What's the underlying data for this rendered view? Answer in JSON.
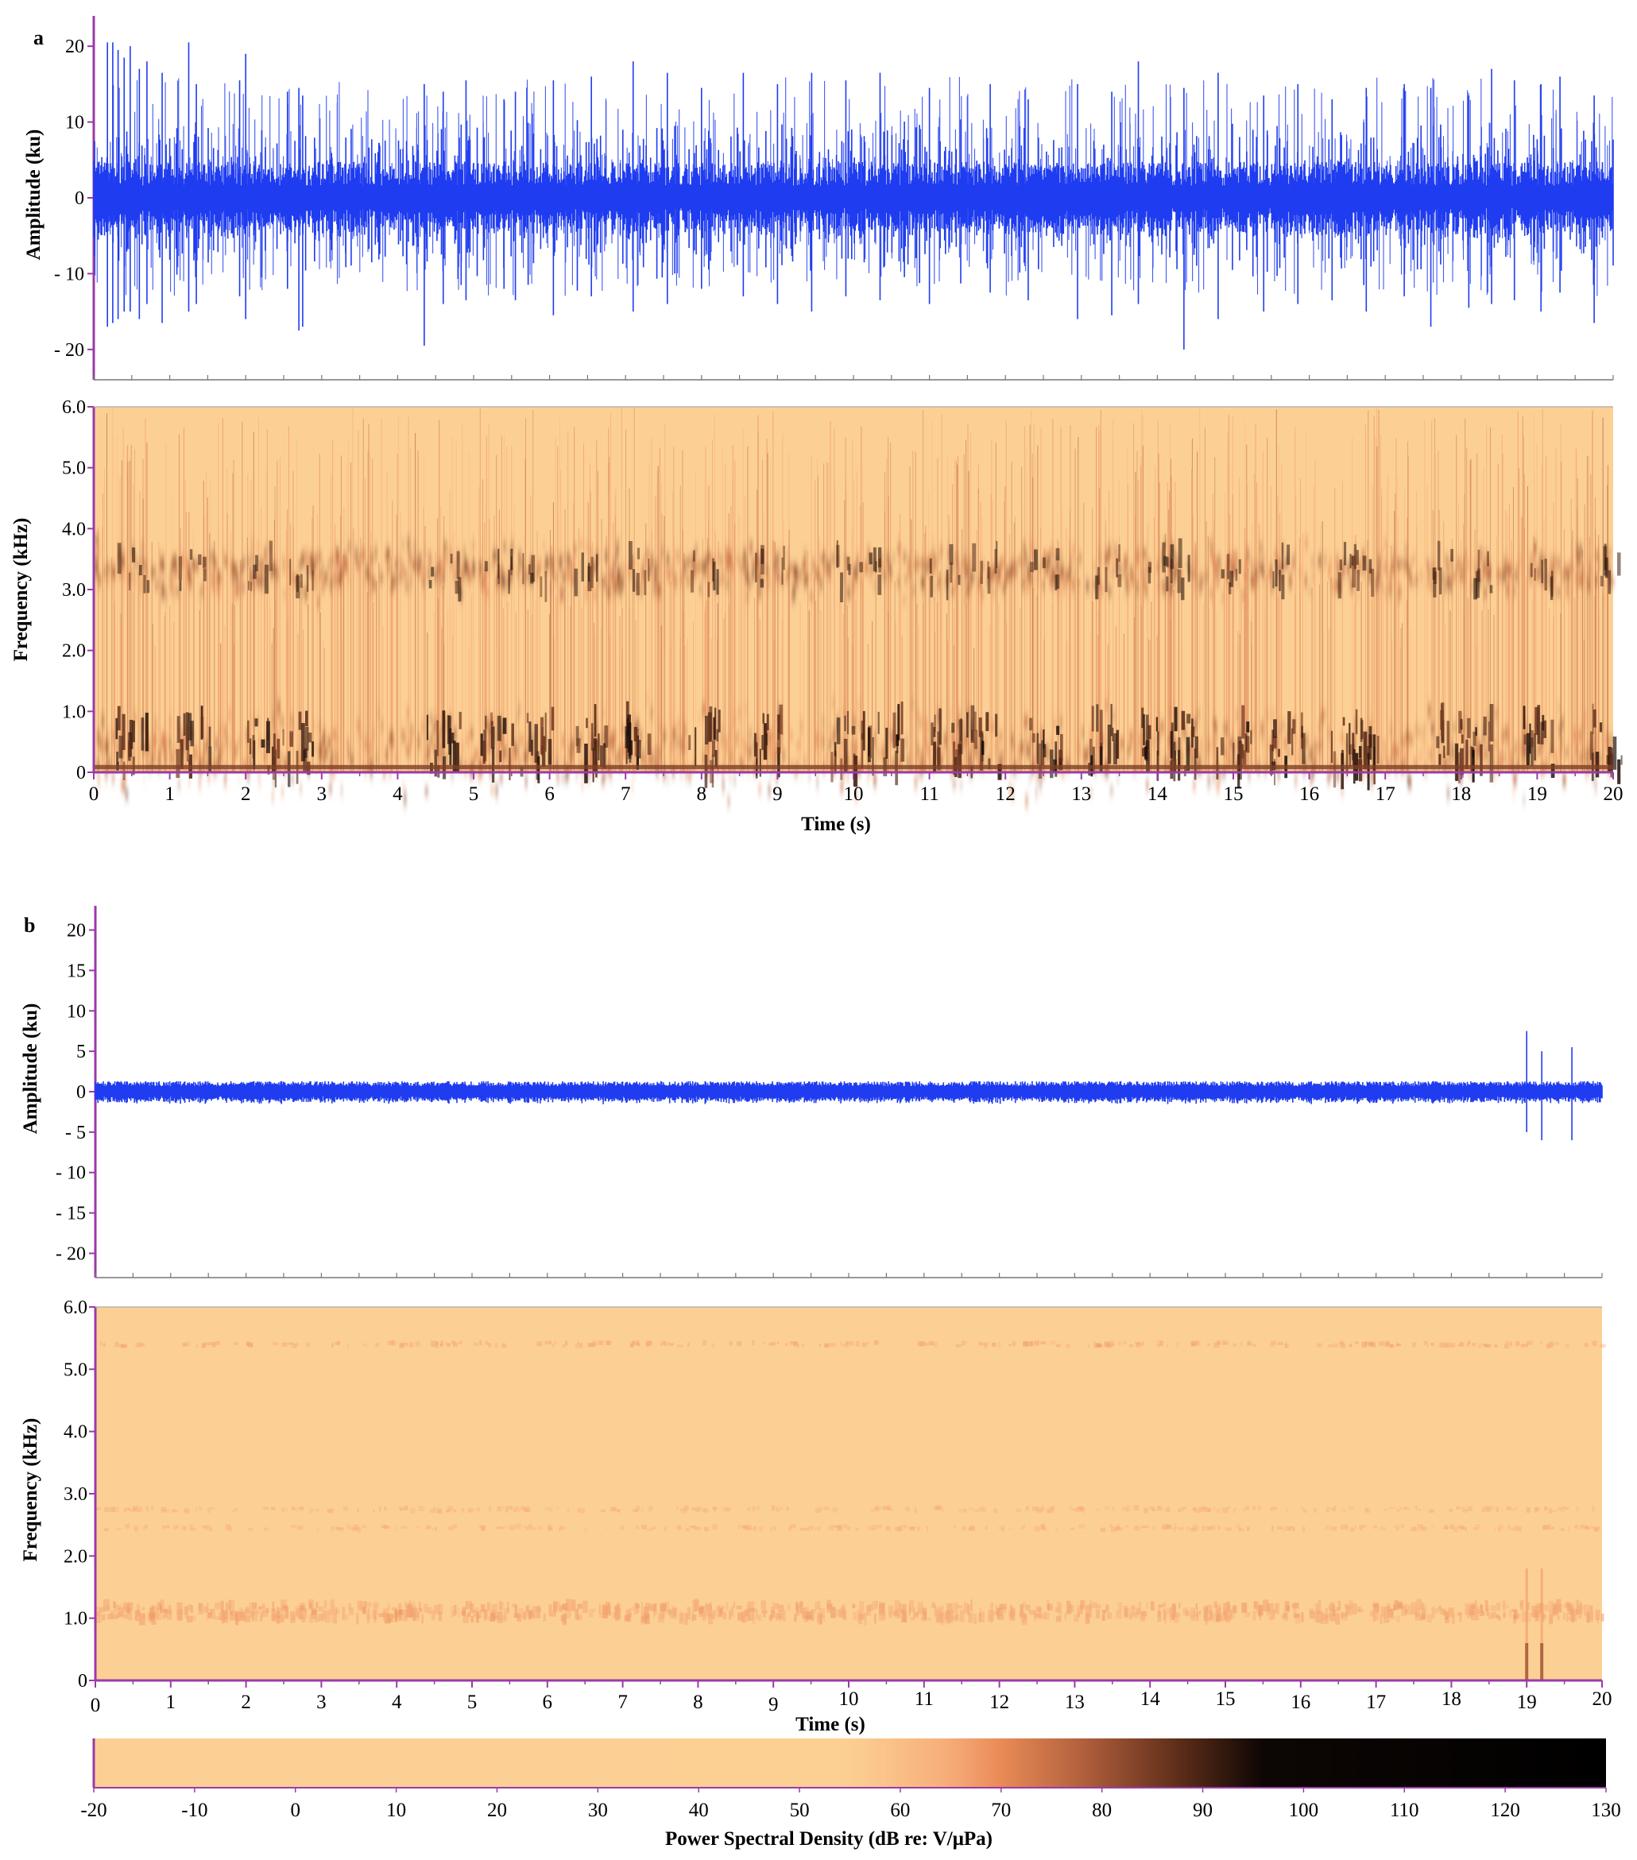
{
  "colors": {
    "waveform": "#1f3cf0",
    "spec_bg": "#fcd095",
    "axis": "#9a3aa8",
    "colormap": [
      "#fcd095",
      "#fccf93",
      "#f6ac78",
      "#e98a56",
      "#b2603c",
      "#5a2b18",
      "#0d0604",
      "#000000"
    ]
  },
  "chart_data": [
    {
      "panel": "a",
      "type": "line",
      "title": "",
      "xlabel": "",
      "ylabel": "Amplitude (ku)",
      "xlim": [
        0,
        20
      ],
      "ylim": [
        -24,
        24
      ],
      "yticks": [
        20,
        10,
        0,
        -10,
        -20
      ],
      "ytick_labels": [
        "20",
        "10",
        "0",
        "- 10",
        "- 20"
      ],
      "series": [
        {
          "values": {
            "t": [
              0.18,
              0.25,
              0.32,
              0.4,
              0.48,
              0.6,
              0.7,
              0.9,
              1.25,
              1.35,
              1.92,
              2.0,
              2.55,
              2.7,
              2.75,
              4.35,
              4.6,
              4.9,
              5.4,
              5.55,
              6.05,
              6.55,
              7.1,
              7.55,
              8.0,
              8.55,
              9.0,
              9.45,
              9.9,
              10.35,
              11.0,
              11.8,
              12.3,
              12.95,
              13.4,
              13.75,
              14.35,
              14.8,
              15.4,
              15.85,
              16.3,
              16.75,
              17.25,
              17.6,
              18.1,
              18.4,
              18.7,
              19.05,
              19.3,
              19.75
            ],
            "max": [
              20.5,
              20.5,
              19.5,
              18.5,
              20.0,
              17.0,
              18.0,
              16.5,
              20.5,
              15.0,
              15.5,
              19.0,
              14.0,
              14.5,
              13.5,
              15.0,
              14.0,
              15.5,
              13.0,
              14.0,
              15.5,
              16.0,
              18.0,
              16.5,
              14.5,
              16.5,
              15.0,
              16.5,
              15.5,
              16.5,
              14.5,
              15.0,
              13.0,
              15.0,
              14.0,
              18.0,
              14.5,
              16.5,
              13.5,
              15.0,
              13.0,
              14.5,
              15.0,
              14.5,
              13.5,
              17.0,
              15.5,
              15.0,
              16.0,
              13.5
            ],
            "min": [
              -17.0,
              -16.5,
              -16.0,
              -15.0,
              -15.0,
              -16.0,
              -14.0,
              -16.5,
              -15.0,
              -14.0,
              -13.0,
              -16.0,
              -12.0,
              -17.5,
              -17.0,
              -19.5,
              -14.0,
              -13.5,
              -12.0,
              -13.5,
              -15.5,
              -13.0,
              -15.0,
              -14.0,
              -12.0,
              -13.0,
              -14.0,
              -15.0,
              -13.0,
              -13.5,
              -14.0,
              -12.5,
              -13.5,
              -16.0,
              -15.5,
              -14.0,
              -20.0,
              -16.0,
              -15.0,
              -14.0,
              -13.5,
              -15.0,
              -13.0,
              -17.0,
              -14.5,
              -14.0,
              -13.5,
              -15.0,
              -12.5,
              -16.5
            ]
          }
        }
      ]
    },
    {
      "panel": "a",
      "type": "heatmap",
      "title": "",
      "xlabel": "Time (s)",
      "ylabel": "Frequency (kHz)",
      "xlim": [
        0,
        20
      ],
      "ylim": [
        0,
        6.0
      ],
      "xticks": [
        0,
        1,
        2,
        3,
        4,
        5,
        6,
        7,
        8,
        9,
        10,
        11,
        12,
        13,
        14,
        15,
        16,
        17,
        18,
        19,
        20
      ],
      "yticks": [
        0,
        1.0,
        2.0,
        3.0,
        4.0,
        5.0,
        6.0
      ],
      "ytick_labels": [
        "0",
        "1.0",
        "2.0",
        "3.0",
        "4.0",
        "5.0",
        "6.0"
      ],
      "bands": [
        {
          "center_khz": 3.3,
          "halfwidth_khz": 0.55,
          "level_db": 80
        },
        {
          "center_khz": 0.35,
          "halfwidth_khz": 0.9,
          "level_db": 78
        }
      ],
      "hot_spots_s": [
        0.5,
        1.3,
        2.2,
        2.7,
        4.6,
        5.3,
        5.8,
        6.5,
        7.1,
        8.0,
        8.9,
        9.9,
        10.4,
        11.2,
        11.7,
        12.5,
        13.3,
        14.0,
        14.3,
        15.0,
        15.7,
        16.5,
        16.7,
        17.8,
        18.2,
        19.0,
        19.9
      ]
    },
    {
      "panel": "b",
      "type": "line",
      "title": "",
      "xlabel": "",
      "ylabel": "Amplitude (ku)",
      "xlim": [
        0,
        20
      ],
      "ylim": [
        -23,
        23
      ],
      "yticks": [
        20,
        15,
        10,
        5,
        0,
        -5,
        -10,
        -15,
        -20
      ],
      "ytick_labels": [
        "20",
        "15",
        "10",
        "5",
        "0",
        "- 5",
        "- 10",
        "- 15",
        "- 20"
      ],
      "series": [
        {
          "values": {
            "t": [
              19.0,
              19.2,
              19.6
            ],
            "max": [
              7.5,
              5.0,
              5.5
            ],
            "min": [
              -5.0,
              -6.0,
              -6.0
            ]
          }
        }
      ]
    },
    {
      "panel": "b",
      "type": "heatmap",
      "title": "",
      "xlabel": "Time (s)",
      "ylabel": "Frequency (kHz)",
      "xlim": [
        0,
        20
      ],
      "ylim": [
        0,
        6.0
      ],
      "xticks": [
        0,
        1,
        2,
        3,
        4,
        5,
        6,
        7,
        8,
        9,
        10,
        11,
        12,
        13,
        14,
        15,
        16,
        17,
        18,
        19,
        20
      ],
      "yticks": [
        0,
        1.0,
        2.0,
        3.0,
        4.0,
        5.0,
        6.0
      ],
      "ytick_labels": [
        "0",
        "1.0",
        "2.0",
        "3.0",
        "4.0",
        "5.0",
        "6.0"
      ],
      "bands": [
        {
          "center_khz": 5.4,
          "halfwidth_khz": 0.03,
          "level_db": 62
        },
        {
          "center_khz": 2.75,
          "halfwidth_khz": 0.03,
          "level_db": 60
        },
        {
          "center_khz": 2.45,
          "halfwidth_khz": 0.03,
          "level_db": 60
        },
        {
          "center_khz": 1.1,
          "halfwidth_khz": 0.12,
          "level_db": 63
        }
      ],
      "hot_spots_s": [
        19.0,
        19.2
      ]
    }
  ],
  "panels": [
    {
      "label": "a",
      "time_label": "Time (s)",
      "x_ticks": [
        "0",
        "1",
        "2",
        "3",
        "4",
        "5",
        "6",
        "7",
        "8",
        "9",
        "10",
        "11",
        "12",
        "13",
        "14",
        "15",
        "16",
        "17",
        "18",
        "19",
        "20"
      ]
    },
    {
      "label": "b",
      "time_label": "Time (s)",
      "x_ticks": [
        "0",
        "1",
        "2",
        "3",
        "4",
        "5",
        "6",
        "7",
        "8",
        "9",
        "10",
        "11",
        "12",
        "13",
        "14",
        "15",
        "16",
        "17",
        "18",
        "19",
        "20"
      ]
    }
  ],
  "colorbar": {
    "label": "Power Spectral Density (dB re: V/μPa)",
    "range": [
      -20,
      130
    ],
    "ticks": [
      "-20",
      "-10",
      "0",
      "10",
      "20",
      "30",
      "40",
      "50",
      "60",
      "70",
      "80",
      "90",
      "100",
      "110",
      "120",
      "130"
    ]
  }
}
